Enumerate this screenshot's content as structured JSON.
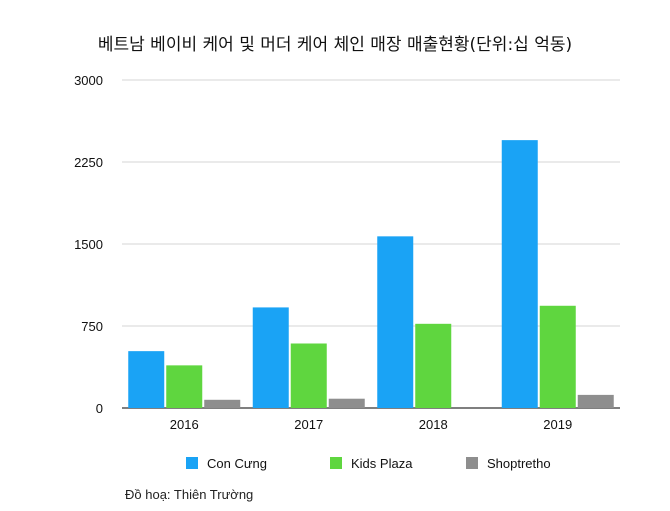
{
  "chart_data": {
    "type": "bar",
    "title": "베트남 베이비 케어 및 머더 케어 체인 매장 매출현황(단위:십 억동)",
    "categories": [
      "2016",
      "2017",
      "2018",
      "2019"
    ],
    "series": [
      {
        "name": "Con Cưng",
        "color": "#1aa3f5",
        "values": [
          520,
          920,
          1570,
          2450
        ]
      },
      {
        "name": "Kids Plaza",
        "color": "#5fd63f",
        "values": [
          390,
          590,
          770,
          935
        ]
      },
      {
        "name": "Shoptretho",
        "color": "#8e8e8e",
        "values": [
          75,
          85,
          0,
          120
        ]
      }
    ],
    "ylim": [
      0,
      3000
    ],
    "yticks": [
      0,
      750,
      1500,
      2250,
      3000
    ],
    "grid": true,
    "legend_position": "bottom",
    "xlabel": "",
    "ylabel": ""
  },
  "credit": "Đồ hoạ: Thiên Trường"
}
